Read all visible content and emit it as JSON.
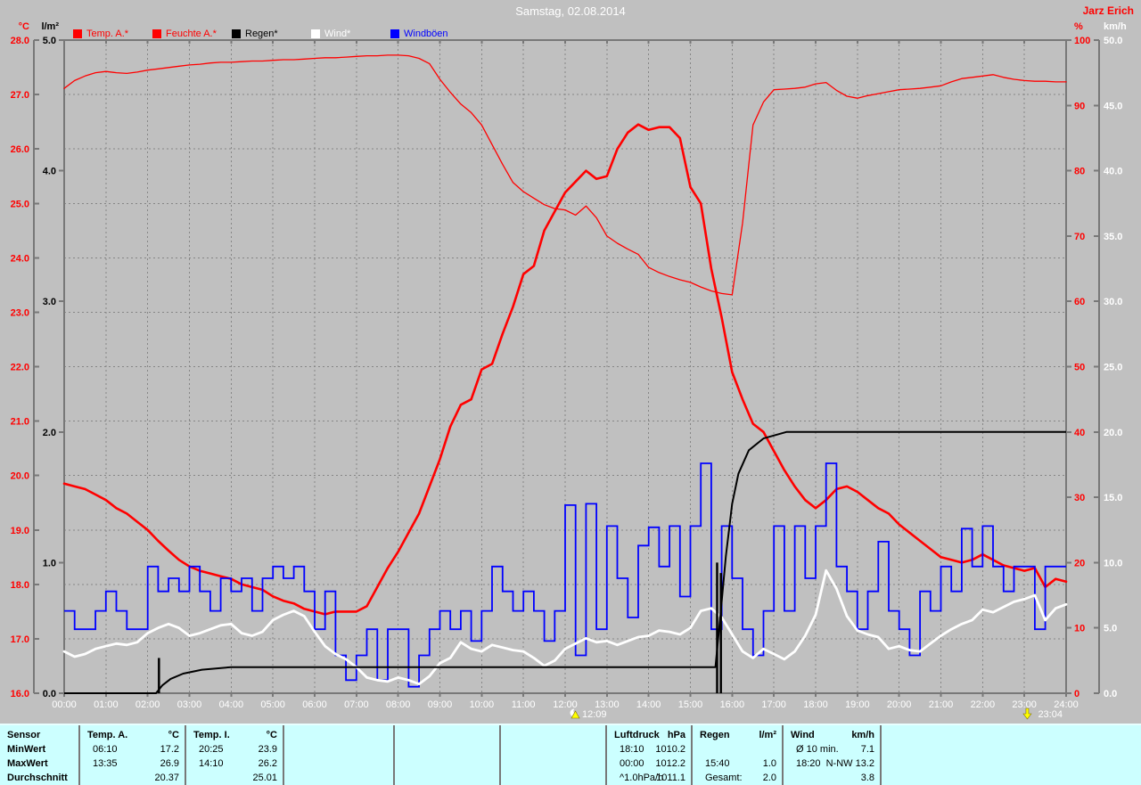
{
  "header": {
    "title": "Samstag, 02.08.2014",
    "station": "Jarz Erich"
  },
  "legend": {
    "items": [
      {
        "label": "Temp. A.*",
        "swatch": "#ff0000",
        "text_color": "#ff0000"
      },
      {
        "label": "Feuchte A.*",
        "swatch": "#ff0000",
        "text_color": "#ff0000"
      },
      {
        "label": "Regen*",
        "swatch": "#000000",
        "text_color": "#000000"
      },
      {
        "label": "Wind*",
        "swatch": "#ffffff",
        "text_color": "#ffffff"
      },
      {
        "label": "Windböen",
        "swatch": "#0000ff",
        "text_color": "#0000ff"
      }
    ]
  },
  "chart_data": {
    "type": "line",
    "title": "Samstag, 02.08.2014",
    "x_unit": "hour of day",
    "x_range": [
      0,
      24
    ],
    "grid": "dashed gray, vertical hourly, horizontal per 1 °C",
    "x_tick_labels": [
      "00:00",
      "01:00",
      "02:00",
      "03:00",
      "04:00",
      "05:00",
      "06:00",
      "07:00",
      "08:00",
      "09:00",
      "10:00",
      "11:00",
      "12:00",
      "13:00",
      "14:00",
      "15:00",
      "16:00",
      "17:00",
      "18:00",
      "19:00",
      "20:00",
      "21:00",
      "22:00",
      "23:00",
      "24:00"
    ],
    "axes": {
      "temp_c": {
        "unit": "°C",
        "side": "outer-left",
        "color": "#ff0000",
        "min": 16,
        "max": 28,
        "tick_labels": [
          "28.0",
          "27.0",
          "26.0",
          "25.0",
          "24.0",
          "23.0",
          "22.0",
          "21.0",
          "20.0",
          "19.0",
          "18.0",
          "17.0",
          "16.0"
        ]
      },
      "rain_lm2": {
        "unit": "l/m²",
        "side": "left",
        "color": "#000000",
        "min": 0,
        "max": 5,
        "tick_labels": [
          "5.0",
          "4.0",
          "3.0",
          "2.0",
          "1.0",
          "0.0"
        ]
      },
      "humidity_pct": {
        "unit": "%",
        "side": "right",
        "color": "#ff0000",
        "min": 0,
        "max": 100,
        "tick_labels": [
          "100",
          "90",
          "80",
          "70",
          "60",
          "50",
          "40",
          "30",
          "20",
          "10",
          "0"
        ]
      },
      "wind_kmh": {
        "unit": "km/h",
        "side": "outer-right",
        "color": "#ffffff",
        "min": 0,
        "max": 50,
        "tick_labels": [
          "50.0",
          "45.0",
          "40.0",
          "35.0",
          "30.0",
          "25.0",
          "20.0",
          "15.0",
          "10.0",
          "5.0",
          "0.0"
        ]
      }
    },
    "series": [
      {
        "name": "Temp. A.*",
        "axis": "temp_c",
        "color": "#ff0000",
        "width": 2.6,
        "start": 0,
        "step": 0.25,
        "values": [
          19.85,
          19.8,
          19.75,
          19.65,
          19.55,
          19.4,
          19.3,
          19.15,
          19.0,
          18.8,
          18.62,
          18.45,
          18.33,
          18.25,
          18.2,
          18.15,
          18.1,
          18.0,
          17.95,
          17.9,
          17.78,
          17.7,
          17.65,
          17.55,
          17.5,
          17.45,
          17.5,
          17.5,
          17.5,
          17.6,
          17.95,
          18.3,
          18.6,
          18.95,
          19.3,
          19.8,
          20.3,
          20.9,
          21.3,
          21.4,
          21.95,
          22.05,
          22.6,
          23.1,
          23.7,
          23.85,
          24.5,
          24.85,
          25.2,
          25.4,
          25.6,
          25.45,
          25.5,
          26.0,
          26.3,
          26.45,
          26.35,
          26.4,
          26.4,
          26.2,
          25.3,
          25.0,
          23.8,
          22.9,
          21.9,
          21.4,
          20.95,
          20.8,
          20.45,
          20.1,
          19.8,
          19.55,
          19.4,
          19.55,
          19.75,
          19.8,
          19.7,
          19.55,
          19.4,
          19.3,
          19.1,
          18.95,
          18.8,
          18.65,
          18.5,
          18.45,
          18.4,
          18.45,
          18.55,
          18.45,
          18.35,
          18.3,
          18.25,
          18.3,
          17.95,
          18.1,
          18.05
        ]
      },
      {
        "name": "Feuchte A.*",
        "axis": "humidity_pct",
        "color": "#ff0000",
        "width": 1.3,
        "start": 0,
        "step": 0.25,
        "values": [
          92.6,
          93.8,
          94.5,
          95.0,
          95.2,
          95.0,
          94.9,
          95.1,
          95.4,
          95.6,
          95.8,
          96.0,
          96.2,
          96.3,
          96.5,
          96.6,
          96.6,
          96.7,
          96.8,
          96.8,
          96.9,
          97.0,
          97.0,
          97.1,
          97.2,
          97.3,
          97.3,
          97.4,
          97.5,
          97.6,
          97.6,
          97.7,
          97.7,
          97.6,
          97.2,
          96.4,
          94.0,
          92.0,
          90.2,
          88.9,
          87.0,
          84.0,
          81.0,
          78.2,
          76.8,
          75.8,
          74.8,
          74.2,
          74.0,
          73.2,
          74.6,
          72.8,
          70.0,
          68.9,
          68.0,
          67.2,
          65.2,
          64.4,
          63.8,
          63.3,
          62.9,
          62.2,
          61.6,
          61.2,
          61.0,
          72.0,
          87.0,
          90.5,
          92.4,
          92.5,
          92.6,
          92.8,
          93.3,
          93.5,
          92.3,
          91.4,
          91.1,
          91.5,
          91.8,
          92.1,
          92.4,
          92.5,
          92.6,
          92.8,
          93.0,
          93.6,
          94.1,
          94.3,
          94.5,
          94.7,
          94.3,
          94.0,
          93.8,
          93.7,
          93.7,
          93.6,
          93.6
        ]
      },
      {
        "name": "Wind*",
        "axis": "wind_kmh",
        "color": "#ffffff",
        "width": 2.8,
        "start": 0,
        "step": 0.25,
        "values": [
          3.2,
          2.8,
          3.0,
          3.4,
          3.6,
          3.8,
          3.7,
          3.9,
          4.6,
          5.0,
          5.3,
          5.0,
          4.4,
          4.6,
          4.9,
          5.2,
          5.3,
          4.6,
          4.4,
          4.7,
          5.6,
          6.0,
          6.3,
          5.9,
          4.7,
          3.6,
          3.0,
          2.6,
          2.0,
          1.2,
          1.0,
          0.9,
          1.2,
          1.0,
          0.7,
          1.3,
          2.3,
          2.7,
          3.9,
          3.4,
          3.2,
          3.7,
          3.5,
          3.3,
          3.2,
          2.7,
          2.1,
          2.5,
          3.4,
          3.8,
          4.2,
          3.9,
          4.0,
          3.7,
          4.0,
          4.3,
          4.4,
          4.8,
          4.7,
          4.5,
          5.0,
          6.3,
          6.5,
          5.8,
          4.5,
          3.2,
          2.7,
          3.4,
          3.0,
          2.6,
          3.2,
          4.4,
          6.0,
          9.4,
          8.0,
          5.9,
          4.8,
          4.5,
          4.3,
          3.4,
          3.6,
          3.3,
          3.2,
          3.8,
          4.4,
          4.9,
          5.3,
          5.6,
          6.4,
          6.2,
          6.6,
          7.0,
          7.2,
          7.5,
          5.6,
          6.5,
          6.8
        ]
      },
      {
        "name": "Windböen",
        "axis": "wind_kmh",
        "color": "#0000ff",
        "width": 1.8,
        "step_line": true,
        "start": 0,
        "step": 0.25,
        "values": [
          6.3,
          4.9,
          4.9,
          6.3,
          7.8,
          6.3,
          4.9,
          4.9,
          9.7,
          7.8,
          8.8,
          7.8,
          9.7,
          7.8,
          6.3,
          8.8,
          7.8,
          8.8,
          6.3,
          8.8,
          9.7,
          8.8,
          9.7,
          7.8,
          4.9,
          7.8,
          2.9,
          1.0,
          2.9,
          4.9,
          1.0,
          4.9,
          4.9,
          0.5,
          2.9,
          4.9,
          6.3,
          4.9,
          6.3,
          4.0,
          6.3,
          9.7,
          7.8,
          6.3,
          7.8,
          6.3,
          4.0,
          6.3,
          14.4,
          2.9,
          14.5,
          4.9,
          12.8,
          8.8,
          5.8,
          11.3,
          12.7,
          9.7,
          12.8,
          7.4,
          12.8,
          17.6,
          4.9,
          12.8,
          8.8,
          4.9,
          2.9,
          6.3,
          12.8,
          6.3,
          12.8,
          8.8,
          12.8,
          17.6,
          9.7,
          7.8,
          4.9,
          7.8,
          11.6,
          6.3,
          4.9,
          2.9,
          7.8,
          6.3,
          9.7,
          7.8,
          12.6,
          9.7,
          12.8,
          9.7,
          7.8,
          9.7,
          9.7,
          4.9,
          9.7,
          9.7,
          9.7
        ]
      },
      {
        "name": "Regen*",
        "axis": "rain_lm2",
        "color": "#000000",
        "width": 2,
        "cumulative": [
          [
            0,
            0
          ],
          [
            2.2,
            0
          ],
          [
            2.35,
            0.06
          ],
          [
            2.55,
            0.11
          ],
          [
            2.85,
            0.15
          ],
          [
            3.3,
            0.18
          ],
          [
            4.0,
            0.2
          ],
          [
            15.6,
            0.2
          ],
          [
            15.72,
            0.6
          ],
          [
            15.85,
            1.05
          ],
          [
            16.0,
            1.45
          ],
          [
            16.15,
            1.68
          ],
          [
            16.4,
            1.86
          ],
          [
            16.75,
            1.95
          ],
          [
            17.3,
            2.0
          ],
          [
            24,
            2.0
          ]
        ],
        "spikes": [
          [
            2.27,
            0.27
          ],
          [
            15.64,
            1.0
          ],
          [
            15.73,
            0.92
          ]
        ]
      }
    ],
    "markers": [
      {
        "label": "12:09",
        "hour": 12.15,
        "icon": "cloud-sun"
      },
      {
        "label": "23:04",
        "hour": 23.07,
        "icon": "arrow-down"
      }
    ]
  },
  "table": {
    "row_labels": [
      "Sensor",
      "MinWert",
      "MaxWert",
      "Durchschnitt"
    ],
    "groups": [
      {
        "name": "Temp. A.",
        "unit": "°C",
        "rows": [
          [
            "06:10",
            "17.2"
          ],
          [
            "13:35",
            "26.9"
          ],
          [
            "",
            "20.37"
          ]
        ]
      },
      {
        "name": "Temp. I.",
        "unit": "°C",
        "rows": [
          [
            "20:25",
            "23.9"
          ],
          [
            "14:10",
            "26.2"
          ],
          [
            "",
            "25.01"
          ]
        ]
      },
      {
        "name": "",
        "unit": "",
        "rows": [
          [
            "",
            ""
          ],
          [
            "",
            ""
          ],
          [
            "",
            ""
          ]
        ]
      },
      {
        "name": "",
        "unit": "",
        "rows": [
          [
            "",
            ""
          ],
          [
            "",
            ""
          ],
          [
            "",
            ""
          ]
        ]
      },
      {
        "name": "",
        "unit": "",
        "rows": [
          [
            "",
            ""
          ],
          [
            "",
            ""
          ],
          [
            "",
            ""
          ]
        ]
      },
      {
        "name": "Luftdruck",
        "unit": "hPa",
        "rows": [
          [
            "18:10",
            "1010.2"
          ],
          [
            "00:00",
            "1012.2"
          ],
          [
            "^1.0hPa/h",
            "1011.1"
          ]
        ]
      },
      {
        "name": "Regen",
        "unit": "l/m²",
        "rows": [
          [
            "",
            ""
          ],
          [
            "15:40",
            "1.0"
          ],
          [
            "Gesamt:",
            "2.0"
          ]
        ]
      },
      {
        "name": "Wind",
        "unit": "km/h",
        "rows": [
          [
            "Ø 10 min.",
            "7.1"
          ],
          [
            "18:20",
            "N-NW 13.2"
          ],
          [
            "",
            "3.8"
          ]
        ]
      },
      {
        "name": "",
        "unit": "",
        "rows": [
          [
            "",
            ""
          ],
          [
            "",
            ""
          ],
          [
            "",
            ""
          ]
        ]
      }
    ]
  }
}
